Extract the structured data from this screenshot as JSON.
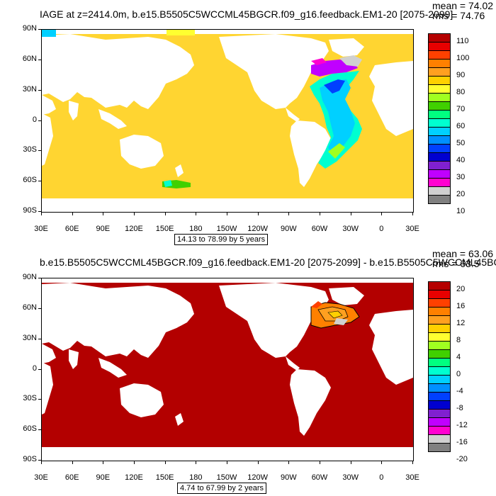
{
  "top": {
    "title": "IAGE at z=2414.0m, b.e15.B5505C5WCCML45BGCR.f09_g16.feedback.EM1-20 [2075-2099]",
    "mean": "mean = 74.02",
    "rms": "rms = 74.76",
    "range": "14.13 to 78.99 by 5 years",
    "colorbar": {
      "labels": [
        "110",
        "100",
        "90",
        "80",
        "70",
        "60",
        "50",
        "40",
        "30",
        "20",
        "10"
      ],
      "colors": [
        "#b50000",
        "#e80000",
        "#ff4000",
        "#ff8000",
        "#ffa020",
        "#ffd000",
        "#ffff30",
        "#a0ff20",
        "#40d000",
        "#00ff80",
        "#00ffd0",
        "#00d0ff",
        "#0090ff",
        "#0040ff",
        "#0000d0",
        "#8020d0",
        "#c000ff",
        "#ff00d0",
        "#d0d0d0",
        "#808080"
      ]
    }
  },
  "bottom": {
    "title": "b.e15.B5505C5WCCML45BGCR.f09_g16.feedback.EM1-20 [2075-2099] - b.e15.B5505C5WCCML45BGC",
    "mean": "mean = 63.06",
    "rms": "rms = 63.5",
    "range": "4.74 to 67.99 by 2 years",
    "colorbar": {
      "labels": [
        "20",
        "16",
        "12",
        "8",
        "4",
        "0",
        "-4",
        "-8",
        "-12",
        "-16",
        "-20"
      ],
      "colors": [
        "#b50000",
        "#e80000",
        "#ff4000",
        "#ff8000",
        "#ffa020",
        "#ffd000",
        "#ffff30",
        "#a0ff20",
        "#40d000",
        "#00ff80",
        "#00ffd0",
        "#00d0ff",
        "#0090ff",
        "#0040ff",
        "#0000d0",
        "#8020d0",
        "#c000ff",
        "#ff00d0",
        "#d0d0d0",
        "#808080"
      ]
    }
  },
  "axes": {
    "lat_labels": [
      "90N",
      "60N",
      "30N",
      "0",
      "30S",
      "60S",
      "90S"
    ],
    "lon_labels": [
      "30E",
      "60E",
      "90E",
      "120E",
      "150E",
      "180",
      "150W",
      "120W",
      "90W",
      "60W",
      "30W",
      "0",
      "30E"
    ]
  },
  "field_colors": {
    "ocean_top": "#ffd531",
    "ocean_bottom": "#b30000"
  }
}
